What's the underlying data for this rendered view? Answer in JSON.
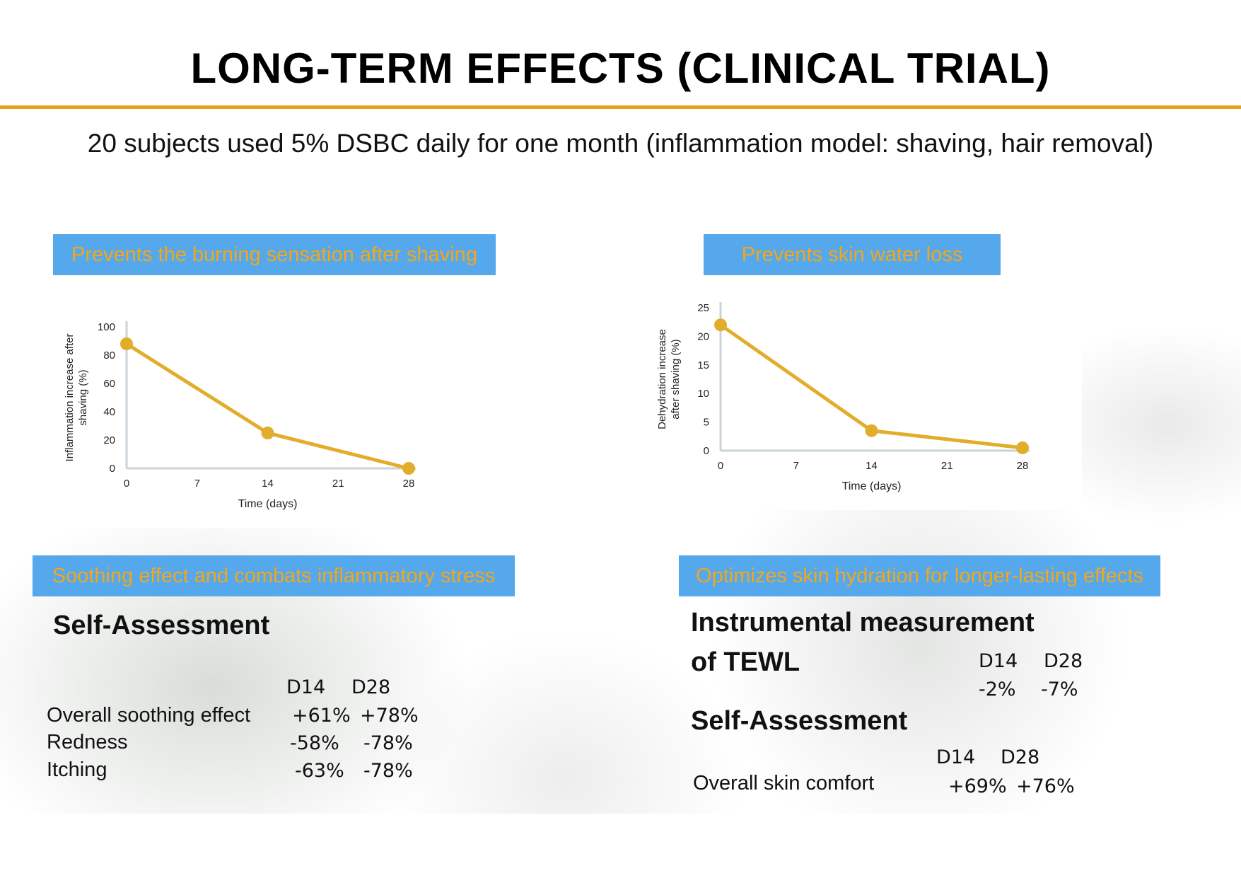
{
  "slide": {
    "title": "LONG-TERM EFFECTS (CLINICAL TRIAL)",
    "subtitle": "20 subjects used 5% DSBC daily for one month (inflammation model: shaving, hair removal)",
    "accent_color": "#e8a317",
    "banner_color": "#56a8ec",
    "banner_text_color": "#f2a71a"
  },
  "banners": {
    "burning": "Prevents the burning sensation after shaving",
    "water_loss": "Prevents skin water loss",
    "soothing": "Soothing effect and combats inflammatory stress",
    "hydration": "Optimizes skin hydration for longer-lasting effects"
  },
  "chart_data": [
    {
      "type": "line",
      "title": "",
      "xlabel": "Time (days)",
      "ylabel_lines": [
        "Inflammation increase after",
        "shaving (%)"
      ],
      "x": [
        0,
        14,
        28
      ],
      "y": [
        88,
        25,
        0
      ],
      "xticks": [
        "0",
        "7",
        "14",
        "21",
        "28"
      ],
      "yticks": [
        "0",
        "20",
        "40",
        "60",
        "80",
        "100"
      ],
      "xlim": [
        0,
        28
      ],
      "ylim": [
        0,
        100
      ],
      "line_color": "#e2ad2b",
      "grid": false
    },
    {
      "type": "line",
      "title": "",
      "xlabel": "Time (days)",
      "ylabel_lines": [
        "Dehydration increase",
        "after shaving (%)"
      ],
      "x": [
        0,
        14,
        28
      ],
      "y": [
        22,
        3.5,
        0.5
      ],
      "xticks": [
        "0",
        "7",
        "14",
        "21",
        "28"
      ],
      "yticks": [
        "0",
        "5",
        "10",
        "15",
        "20",
        "25"
      ],
      "xlim": [
        0,
        28
      ],
      "ylim": [
        0,
        25
      ],
      "line_color": "#e2ad2b",
      "grid": false
    }
  ],
  "left_assessment": {
    "heading": "Self-Assessment",
    "col_d14": "D14",
    "col_d28": "D28",
    "rows": [
      {
        "label": "Overall soothing effect",
        "d14": "+61%",
        "d28": "+78%"
      },
      {
        "label": "Redness",
        "d14": "-58%",
        "d28": "-78%"
      },
      {
        "label": "Itching",
        "d14": "-63%",
        "d28": "-78%"
      }
    ]
  },
  "right_instrumental": {
    "heading_line1": "Instrumental measurement",
    "heading_line2": "of TEWL",
    "col_d14": "D14",
    "col_d28": "D28",
    "d14": "-2%",
    "d28": "-7%"
  },
  "right_assessment": {
    "heading": "Self-Assessment",
    "col_d14": "D14",
    "col_d28": "D28",
    "label": "Overall skin comfort",
    "d14": "+69%",
    "d28": "+76%"
  }
}
